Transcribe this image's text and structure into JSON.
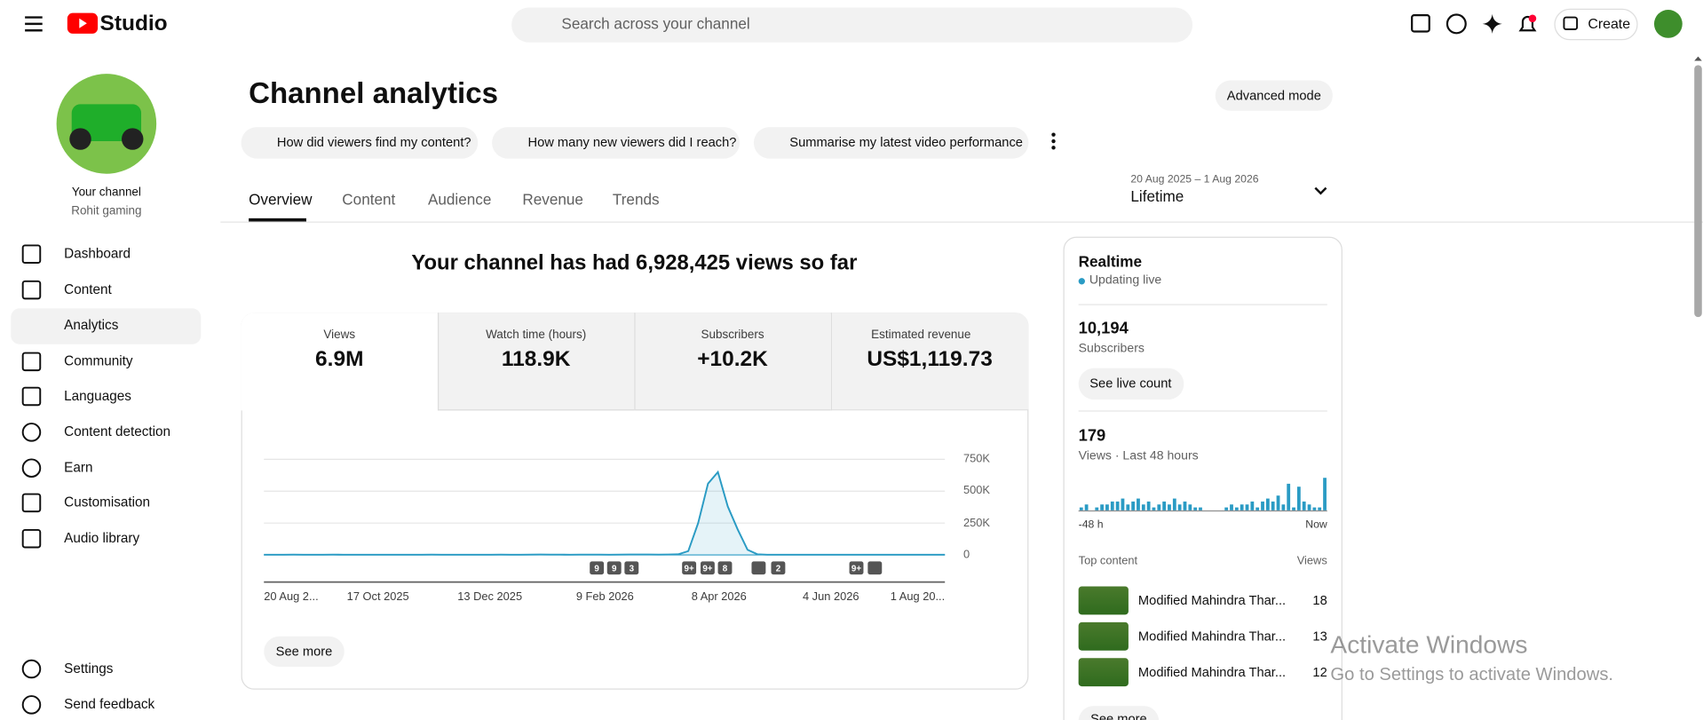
{
  "header": {
    "logo": "Studio",
    "search_placeholder": "Search across your channel",
    "create": "Create"
  },
  "sidebar": {
    "channel_label": "Your channel",
    "channel_name": "Rohit gaming",
    "nav": [
      "Dashboard",
      "Content",
      "Analytics",
      "Community",
      "Languages",
      "Content detection",
      "Earn",
      "Customisation",
      "Audio library"
    ],
    "bottom": [
      "Settings",
      "Send feedback"
    ]
  },
  "main": {
    "title": "Channel analytics",
    "advanced": "Advanced mode",
    "suggestions": [
      "How did viewers find my content?",
      "How many new viewers did I reach?",
      "Summarise my latest video performance"
    ],
    "tabs": [
      "Overview",
      "Content",
      "Audience",
      "Revenue",
      "Trends"
    ],
    "date_range": "20 Aug 2025 – 1 Aug 2026",
    "period": "Lifetime",
    "headline": "Your channel has had 6,928,425 views so far",
    "metrics": [
      {
        "label": "Views",
        "value": "6.9M"
      },
      {
        "label": "Watch time (hours)",
        "value": "118.9K"
      },
      {
        "label": "Subscribers",
        "value": "+10.2K"
      },
      {
        "label": "Estimated revenue",
        "value": "US$1,119.73"
      }
    ],
    "chart": {
      "type": "line",
      "color": "#2a9bc4",
      "values": [
        2000,
        1500,
        1800,
        2200,
        1600,
        1400,
        2000,
        2500,
        1800,
        1500,
        1700,
        1900,
        2100,
        1600,
        1500,
        1800,
        2000,
        2200,
        1900,
        1700,
        1600,
        1500,
        1800,
        2100,
        2400,
        2000,
        1800,
        2600,
        3000,
        2500,
        2200,
        2000,
        2400,
        2800,
        2200,
        2000,
        2500,
        3000,
        3500,
        3000,
        2600,
        3200,
        5000,
        30000,
        250000,
        560000,
        650000,
        380000,
        200000,
        40000,
        5000,
        2000,
        1600,
        1500,
        1400,
        1500,
        1600,
        1500,
        1400,
        1300,
        1500,
        1600,
        1500,
        1400,
        1300,
        1400,
        1500,
        1400,
        1300,
        1400
      ],
      "ylim": [
        0,
        750000
      ],
      "yticks": [
        0,
        {
          "value": 250000,
          "label": "250K"
        },
        {
          "value": 500000,
          "label": "500K"
        },
        {
          "value": 750000,
          "label": "750K"
        }
      ],
      "x_labels": [
        "20 Aug 2...",
        "17 Oct 2025",
        "13 Dec 2025",
        "9 Feb 2026",
        "8 Apr 2026",
        "4 Jun 2026",
        "1 Aug 20..."
      ],
      "events": [
        "9",
        "9",
        "3",
        "9+",
        "9+",
        "8",
        "2",
        "9+"
      ]
    },
    "see_more": "See more"
  },
  "realtime": {
    "title": "Realtime",
    "status": "Updating live",
    "subscribers": "10,194",
    "subscribers_label": "Subscribers",
    "live_count": "See live count",
    "views": "179",
    "views_label": "Views · Last 48 hours",
    "bars": [
      1,
      2,
      0,
      1,
      2,
      2,
      3,
      3,
      4,
      2,
      3,
      4,
      2,
      3,
      1,
      2,
      3,
      2,
      4,
      2,
      3,
      2,
      1,
      1,
      0,
      0,
      0,
      0,
      1,
      2,
      1,
      2,
      2,
      3,
      1,
      3,
      4,
      3,
      5,
      2,
      9,
      1,
      8,
      3,
      2,
      1,
      1,
      11
    ],
    "start_label": "-48 h",
    "end_label": "Now",
    "top_content": "Top content",
    "views_header": "Views",
    "items": [
      {
        "title": "Modified Mahindra Thar...",
        "views": 18
      },
      {
        "title": "Modified Mahindra Thar...",
        "views": 13
      },
      {
        "title": "Modified Mahindra Thar...",
        "views": 12
      }
    ],
    "see_more": "See more"
  },
  "watermark": {
    "title": "Activate Windows",
    "text": "Go to Settings to activate Windows."
  }
}
